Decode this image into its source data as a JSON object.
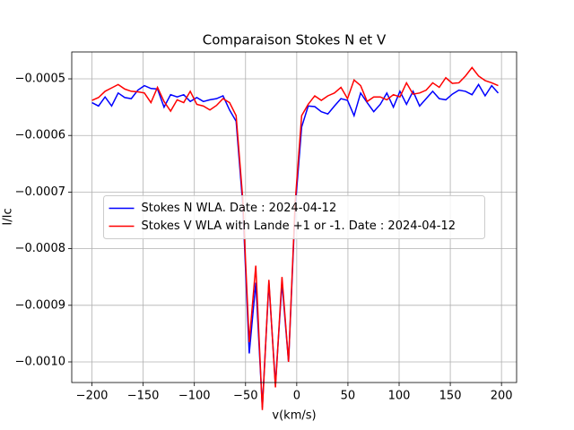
{
  "chart_data": {
    "type": "line",
    "title": "Comparaison Stokes N et V",
    "xlabel": "v(km/s)",
    "ylabel": "I/Ic",
    "x": [
      -200,
      -193.6,
      -187.2,
      -180.8,
      -174.4,
      -168,
      -161.6,
      -155.2,
      -148.8,
      -142.4,
      -136,
      -129.6,
      -123.2,
      -116.8,
      -110.4,
      -104,
      -97.6,
      -91.2,
      -84.8,
      -78.4,
      -72,
      -65.6,
      -59.2,
      -52.8,
      -46.4,
      -40,
      -33.6,
      -27.2,
      -20.8,
      -14.4,
      -8,
      -1.6,
      4.8,
      11.2,
      17.6,
      24,
      30.4,
      36.8,
      43.2,
      49.6,
      56,
      62.4,
      68.8,
      75.2,
      81.6,
      88,
      94.4,
      100.8,
      107.2,
      113.6,
      120,
      126.4,
      132.8,
      139.2,
      145.6,
      152,
      158.4,
      164.8,
      171.2,
      177.6,
      184,
      190.4,
      196.8
    ],
    "series": [
      {
        "name": "Stokes N WLA. Date : 2024-04-12",
        "color": "#0000ff",
        "values": [
          -0.000542,
          -0.000548,
          -0.000532,
          -0.000548,
          -0.000525,
          -0.000533,
          -0.000535,
          -0.00052,
          -0.000512,
          -0.000517,
          -0.000518,
          -0.00055,
          -0.000528,
          -0.000532,
          -0.000528,
          -0.00054,
          -0.000533,
          -0.00054,
          -0.000537,
          -0.000535,
          -0.00053,
          -0.000555,
          -0.000575,
          -0.00072,
          -0.000985,
          -0.00086,
          -0.00108,
          -0.00086,
          -0.00104,
          -0.00086,
          -0.001,
          -0.00073,
          -0.000585,
          -0.000548,
          -0.000549,
          -0.000558,
          -0.000562,
          -0.000548,
          -0.000535,
          -0.000538,
          -0.000565,
          -0.000525,
          -0.000542,
          -0.000558,
          -0.000545,
          -0.000525,
          -0.00055,
          -0.000522,
          -0.000545,
          -0.000522,
          -0.000548,
          -0.000535,
          -0.000522,
          -0.000535,
          -0.000537,
          -0.000527,
          -0.00052,
          -0.000522,
          -0.000528,
          -0.00051,
          -0.00053,
          -0.000512,
          -0.000525
        ]
      },
      {
        "name": "Stokes V WLA with Lande +1 or -1. Date : 2024-04-12",
        "color": "#ff0000",
        "values": [
          -0.000538,
          -0.000533,
          -0.000522,
          -0.000516,
          -0.00051,
          -0.000518,
          -0.000522,
          -0.000523,
          -0.000525,
          -0.000542,
          -0.000515,
          -0.00054,
          -0.000557,
          -0.000537,
          -0.000542,
          -0.000522,
          -0.000545,
          -0.000548,
          -0.000555,
          -0.000547,
          -0.000535,
          -0.000542,
          -0.000565,
          -0.00071,
          -0.000965,
          -0.00083,
          -0.001085,
          -0.000855,
          -0.001045,
          -0.00085,
          -0.001,
          -0.00072,
          -0.000565,
          -0.000545,
          -0.00053,
          -0.000538,
          -0.00053,
          -0.000525,
          -0.000515,
          -0.000535,
          -0.000502,
          -0.000512,
          -0.00054,
          -0.000532,
          -0.000532,
          -0.000537,
          -0.000528,
          -0.000532,
          -0.000507,
          -0.000527,
          -0.000525,
          -0.00052,
          -0.000507,
          -0.000515,
          -0.000498,
          -0.000508,
          -0.000507,
          -0.000495,
          -0.00048,
          -0.000495,
          -0.000503,
          -0.000507,
          -0.000512
        ]
      }
    ],
    "xlim": [
      -219.75,
      214.75
    ],
    "ylim": [
      -0.0010364,
      -0.0004525
    ],
    "xticks": [
      {
        "value": -200,
        "label": "−200"
      },
      {
        "value": -150,
        "label": "−150"
      },
      {
        "value": -100,
        "label": "−100"
      },
      {
        "value": -50,
        "label": "−50"
      },
      0,
      50,
      100,
      150,
      200
    ],
    "yticks": [
      {
        "value": -0.001,
        "label": "−0.0010"
      },
      {
        "value": -0.0009,
        "label": "−0.0009"
      },
      {
        "value": -0.0008,
        "label": "−0.0008"
      },
      {
        "value": -0.0007,
        "label": "−0.0007"
      },
      {
        "value": -0.0006,
        "label": "−0.0006"
      },
      {
        "value": -0.0005,
        "label": "−0.0005"
      }
    ],
    "grid": true,
    "legend": "center"
  }
}
